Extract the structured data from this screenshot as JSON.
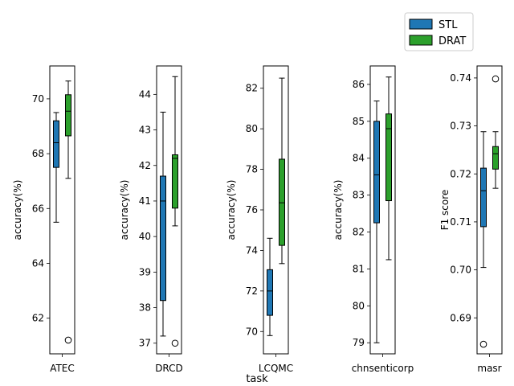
{
  "figure": {
    "xlabel": "task",
    "legend": {
      "placement": "top-right",
      "entries": [
        {
          "label": "STL",
          "color": "#1f77b4"
        },
        {
          "label": "DRAT",
          "color": "#2ca02c"
        }
      ]
    }
  },
  "chart_data": [
    {
      "type": "box",
      "category": "ATEC",
      "ylabel": "accuracy(%)",
      "ylim": [
        60.7,
        71.2
      ],
      "yticks": [
        62,
        64,
        66,
        68,
        70
      ],
      "series": [
        {
          "name": "STL",
          "min": 65.5,
          "q1": 67.5,
          "median": 68.4,
          "q3": 69.2,
          "max": 69.5,
          "outliers": []
        },
        {
          "name": "DRAT",
          "min": 67.1,
          "q1": 68.65,
          "median": 69.55,
          "q3": 70.15,
          "max": 70.65,
          "outliers": [
            61.2
          ]
        }
      ]
    },
    {
      "type": "box",
      "category": "DRCD",
      "ylabel": "accuracy(%)",
      "ylim": [
        36.7,
        44.8
      ],
      "yticks": [
        37,
        38,
        39,
        40,
        41,
        42,
        43,
        44
      ],
      "series": [
        {
          "name": "STL",
          "min": 37.2,
          "q1": 38.2,
          "median": 41.0,
          "q3": 41.7,
          "max": 43.5,
          "outliers": []
        },
        {
          "name": "DRAT",
          "min": 40.3,
          "q1": 40.8,
          "median": 42.2,
          "q3": 42.3,
          "max": 44.5,
          "outliers": [
            37.0
          ]
        }
      ]
    },
    {
      "type": "box",
      "category": "LCQMC",
      "ylabel": "accuracy(%)",
      "ylim": [
        68.9,
        83.1
      ],
      "yticks": [
        70,
        72,
        74,
        76,
        78,
        80,
        82
      ],
      "series": [
        {
          "name": "STL",
          "min": 69.8,
          "q1": 70.8,
          "median": 72.0,
          "q3": 73.05,
          "max": 74.6,
          "outliers": []
        },
        {
          "name": "DRAT",
          "min": 73.35,
          "q1": 74.25,
          "median": 76.35,
          "q3": 78.5,
          "max": 82.5,
          "outliers": []
        }
      ]
    },
    {
      "type": "box",
      "category": "chnsenticorp",
      "ylabel": "accuracy(%)",
      "ylim": [
        78.7,
        86.5
      ],
      "yticks": [
        79,
        80,
        81,
        82,
        83,
        84,
        85,
        86
      ],
      "series": [
        {
          "name": "STL",
          "min": 79.0,
          "q1": 82.25,
          "median": 83.55,
          "q3": 85.0,
          "max": 85.55,
          "outliers": []
        },
        {
          "name": "DRAT",
          "min": 81.25,
          "q1": 82.85,
          "median": 84.8,
          "q3": 85.2,
          "max": 86.2,
          "outliers": []
        }
      ]
    },
    {
      "type": "box",
      "category": "masr",
      "ylabel": "F1 score",
      "ylim": [
        0.6825,
        0.7425
      ],
      "yticks": [
        0.69,
        0.7,
        0.71,
        0.72,
        0.73,
        0.74
      ],
      "series": [
        {
          "name": "STL",
          "min": 0.7005,
          "q1": 0.709,
          "median": 0.7165,
          "q3": 0.7212,
          "max": 0.7288,
          "outliers": [
            0.6845
          ]
        },
        {
          "name": "DRAT",
          "min": 0.717,
          "q1": 0.721,
          "median": 0.7242,
          "q3": 0.7257,
          "max": 0.7288,
          "outliers": [
            0.7398
          ]
        }
      ]
    }
  ]
}
